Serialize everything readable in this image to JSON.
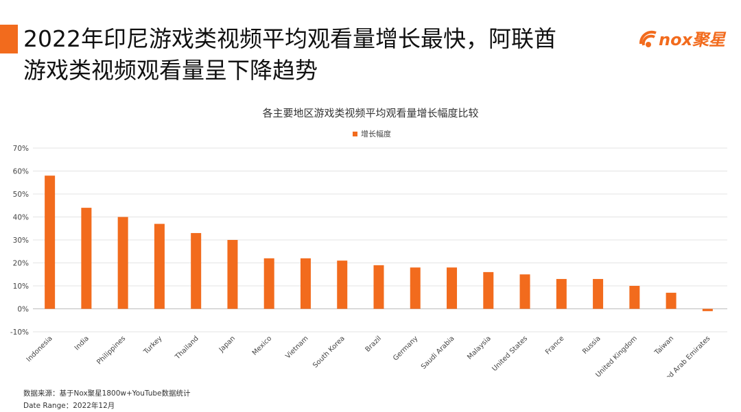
{
  "header": {
    "title_line1": "2022年印尼游戏类视频平均观看量增长最快，阿联酋",
    "title_line2": "游戏类视频观看量呈下降趋势",
    "logo_text": "nox聚星"
  },
  "chart_data": {
    "type": "bar",
    "title": "各主要地区游戏类视频平均观看量增长幅度比较",
    "legend": "增长幅度",
    "legend_position": "top-center",
    "xlabel": "",
    "ylabel": "",
    "ylim": [
      -10,
      70
    ],
    "yticks": [
      "70%",
      "60%",
      "50%",
      "40%",
      "30%",
      "20%",
      "10%",
      "0%",
      "-10%"
    ],
    "grid": true,
    "color": "#f26b1d",
    "categories": [
      "Indonesia",
      "India",
      "Philippines",
      "Turkey",
      "Thailand",
      "Japan",
      "Mexico",
      "Vietnam",
      "South Korea",
      "Brazil",
      "Germany",
      "Saudi Arabia",
      "Malaysia",
      "United States",
      "France",
      "Russia",
      "United Kingdom",
      "Taiwan",
      "United Arab Emirates"
    ],
    "series": [
      {
        "values": [
          58,
          44,
          40,
          37,
          33,
          30,
          22,
          22,
          21,
          19,
          18,
          18,
          16,
          15,
          13,
          13,
          10,
          7,
          -1
        ]
      }
    ]
  },
  "footer": {
    "source": "数据来源：基于Nox聚星1800w+YouTube数据统计",
    "date_range": "Date Range：2022年12月"
  }
}
